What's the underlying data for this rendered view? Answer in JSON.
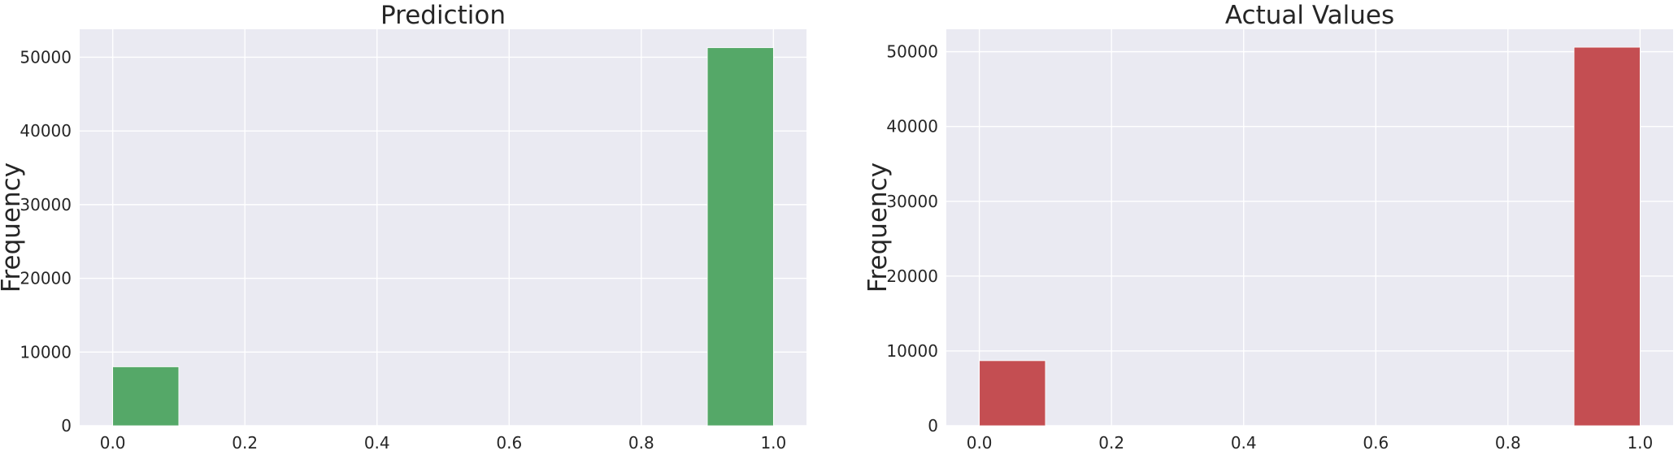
{
  "chart_data": [
    {
      "type": "bar",
      "title": "Prediction",
      "xlabel": "",
      "ylabel": "Frequency",
      "xlim": [
        -0.05,
        1.05
      ],
      "ylim": [
        0,
        53800
      ],
      "xticks": [
        0.0,
        0.2,
        0.4,
        0.6,
        0.8,
        1.0
      ],
      "xtick_labels": [
        "0.0",
        "0.2",
        "0.4",
        "0.6",
        "0.8",
        "1.0"
      ],
      "yticks": [
        0,
        10000,
        20000,
        30000,
        40000,
        50000
      ],
      "ytick_labels": [
        "0",
        "10000",
        "20000",
        "30000",
        "40000",
        "50000"
      ],
      "bins": [
        [
          0.0,
          0.1
        ],
        [
          0.9,
          1.0
        ]
      ],
      "values": [
        8000,
        51300
      ],
      "color": "#55a868",
      "grid": true
    },
    {
      "type": "bar",
      "title": "Actual Values",
      "xlabel": "",
      "ylabel": "Frequency",
      "xlim": [
        -0.05,
        1.05
      ],
      "ylim": [
        0,
        53000
      ],
      "xticks": [
        0.0,
        0.2,
        0.4,
        0.6,
        0.8,
        1.0
      ],
      "xtick_labels": [
        "0.0",
        "0.2",
        "0.4",
        "0.6",
        "0.8",
        "1.0"
      ],
      "yticks": [
        0,
        10000,
        20000,
        30000,
        40000,
        50000
      ],
      "ytick_labels": [
        "0",
        "10000",
        "20000",
        "30000",
        "40000",
        "50000"
      ],
      "bins": [
        [
          0.0,
          0.1
        ],
        [
          0.9,
          1.0
        ]
      ],
      "values": [
        8700,
        50600
      ],
      "color": "#c44e52",
      "grid": true
    }
  ]
}
